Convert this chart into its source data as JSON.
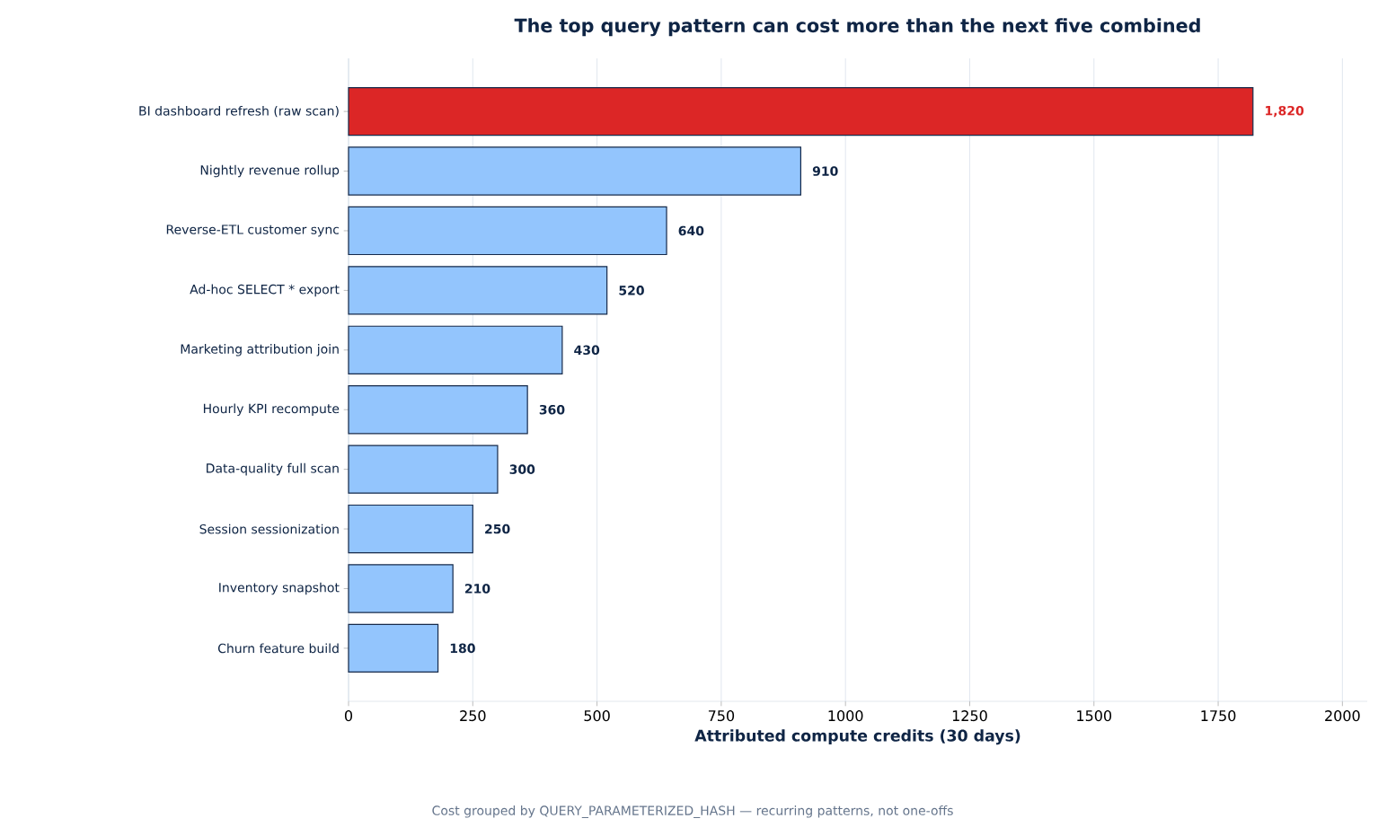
{
  "chart_data": {
    "type": "bar",
    "orientation": "horizontal",
    "title": "The top query pattern can cost more than the next five combined",
    "xlabel": "Attributed compute credits (30 days)",
    "categories": [
      "BI dashboard refresh (raw scan)",
      "Nightly revenue rollup",
      "Reverse-ETL customer sync",
      "Ad-hoc SELECT * export",
      "Marketing attribution join",
      "Hourly KPI recompute",
      "Data-quality full scan",
      "Session sessionization",
      "Inventory snapshot",
      "Churn feature build"
    ],
    "values": [
      1820,
      910,
      640,
      520,
      430,
      360,
      300,
      250,
      210,
      180
    ],
    "value_labels": [
      "1,820",
      "910",
      "640",
      "520",
      "430",
      "360",
      "300",
      "250",
      "210",
      "180"
    ],
    "colors": [
      "#dc2626",
      "#93c5fd",
      "#93c5fd",
      "#93c5fd",
      "#93c5fd",
      "#93c5fd",
      "#93c5fd",
      "#93c5fd",
      "#93c5fd",
      "#93c5fd"
    ],
    "xlim": [
      0,
      2050
    ],
    "xticks": [
      0,
      250,
      500,
      750,
      1000,
      1250,
      1500,
      1750,
      2000
    ],
    "grid": "x",
    "annotations": [
      "Cost grouped by QUERY_PARAMETERIZED_HASH — recurring patterns, not one-offs"
    ]
  }
}
